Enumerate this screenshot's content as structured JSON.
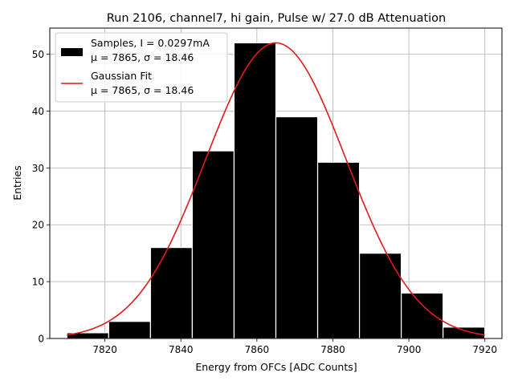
{
  "chart_data": {
    "type": "bar",
    "title": "Run 2106, channel7, hi gain, Pulse w/ 27.0 dB Attenuation",
    "xlabel": "Energy from OFCs [ADC Counts]",
    "ylabel": "Entries",
    "xlim": [
      7805.5,
      7924.5
    ],
    "ylim": [
      0,
      54.6
    ],
    "grid": true,
    "xticks": [
      7820,
      7840,
      7860,
      7880,
      7900,
      7920
    ],
    "yticks": [
      0,
      10,
      20,
      30,
      40,
      50
    ],
    "bins": {
      "edges": [
        7810,
        7821,
        7832,
        7843,
        7854,
        7865,
        7876,
        7887,
        7898,
        7909,
        7920
      ],
      "counts": [
        1,
        3,
        16,
        33,
        52,
        39,
        31,
        15,
        8,
        2
      ]
    },
    "fit": {
      "mu": 7865,
      "sigma": 18.46,
      "peak": 52,
      "x_range": [
        7810,
        7920
      ]
    },
    "colors": {
      "bars": "#000000",
      "bar_edge": "#ffffff",
      "fit": "#e41a1c",
      "grid": "#b0b0b0"
    },
    "legend": {
      "position": "top-left",
      "entries": [
        {
          "line1": "Samples, I = 0.0297mA",
          "mu_label": "μ = 7865, ",
          "sigma_label": "σ = 18.46"
        },
        {
          "line1": "Gaussian Fit",
          "mu_label": "μ = 7865, ",
          "sigma_label": "σ = 18.46"
        }
      ]
    }
  }
}
